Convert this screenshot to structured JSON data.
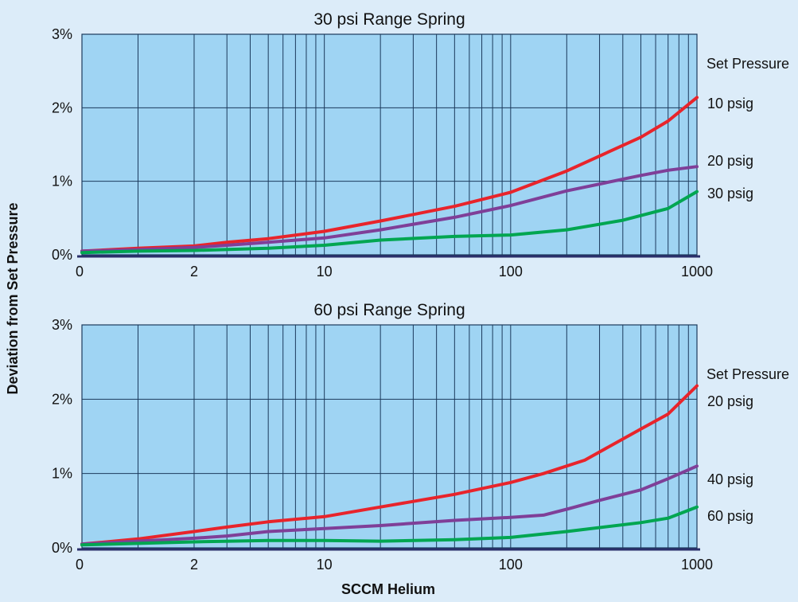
{
  "chart_data": [
    {
      "type": "line",
      "title": "30 psi Range Spring",
      "xlabel": "SCCM Helium",
      "ylabel": "Deviation from Set Pressure",
      "xscale": "log",
      "xlim": [
        0.5,
        1000
      ],
      "ylim": [
        0,
        3
      ],
      "x_ticks": [
        {
          "value": 0.5,
          "label": "0"
        },
        {
          "value": 2,
          "label": "2"
        },
        {
          "value": 10,
          "label": "10"
        },
        {
          "value": 100,
          "label": "100"
        },
        {
          "value": 1000,
          "label": "1000"
        }
      ],
      "y_ticks": [
        {
          "value": 0,
          "label": "0%"
        },
        {
          "value": 1,
          "label": "1%"
        },
        {
          "value": 2,
          "label": "2%"
        },
        {
          "value": 3,
          "label": "3%"
        }
      ],
      "grid": true,
      "legend_title": "Set Pressure",
      "legend_position": "right",
      "series": [
        {
          "name": "10 psig",
          "color": "#e8242b",
          "x": [
            0.5,
            1,
            2,
            3,
            5,
            10,
            20,
            50,
            100,
            200,
            500,
            700,
            1000
          ],
          "y": [
            0.05,
            0.09,
            0.12,
            0.17,
            0.22,
            0.32,
            0.46,
            0.66,
            0.85,
            1.14,
            1.6,
            1.82,
            2.14
          ]
        },
        {
          "name": "20 psig",
          "color": "#7f3f98",
          "x": [
            0.5,
            1,
            2,
            3,
            5,
            10,
            20,
            50,
            100,
            200,
            500,
            700,
            1000
          ],
          "y": [
            0.05,
            0.07,
            0.1,
            0.13,
            0.17,
            0.23,
            0.34,
            0.51,
            0.67,
            0.87,
            1.08,
            1.15,
            1.2
          ]
        },
        {
          "name": "30 psig",
          "color": "#00a651",
          "x": [
            0.5,
            1,
            2,
            5,
            10,
            20,
            50,
            100,
            200,
            400,
            700,
            1000
          ],
          "y": [
            0.03,
            0.05,
            0.06,
            0.09,
            0.13,
            0.2,
            0.25,
            0.27,
            0.34,
            0.47,
            0.63,
            0.86
          ]
        }
      ]
    },
    {
      "type": "line",
      "title": "60 psi Range Spring",
      "xlabel": "SCCM Helium",
      "ylabel": "Deviation from Set Pressure",
      "xscale": "log",
      "xlim": [
        0.5,
        1000
      ],
      "ylim": [
        0,
        3
      ],
      "x_ticks": [
        {
          "value": 0.5,
          "label": "0"
        },
        {
          "value": 2,
          "label": "2"
        },
        {
          "value": 10,
          "label": "10"
        },
        {
          "value": 100,
          "label": "100"
        },
        {
          "value": 1000,
          "label": "1000"
        }
      ],
      "y_ticks": [
        {
          "value": 0,
          "label": "0%"
        },
        {
          "value": 1,
          "label": "1%"
        },
        {
          "value": 2,
          "label": "2%"
        },
        {
          "value": 3,
          "label": "3%"
        }
      ],
      "grid": true,
      "legend_title": "Set Pressure",
      "legend_position": "right",
      "series": [
        {
          "name": "20 psig",
          "color": "#e8242b",
          "x": [
            0.5,
            1,
            2,
            3,
            5,
            10,
            20,
            50,
            100,
            150,
            250,
            500,
            700,
            1000
          ],
          "y": [
            0.05,
            0.12,
            0.22,
            0.28,
            0.35,
            0.42,
            0.55,
            0.72,
            0.88,
            1.0,
            1.18,
            1.6,
            1.8,
            2.18
          ]
        },
        {
          "name": "40 psig",
          "color": "#7f3f98",
          "x": [
            0.5,
            1,
            2,
            3,
            5,
            10,
            20,
            50,
            100,
            150,
            200,
            300,
            500,
            700,
            1000
          ],
          "y": [
            0.05,
            0.09,
            0.13,
            0.16,
            0.22,
            0.26,
            0.3,
            0.37,
            0.41,
            0.44,
            0.52,
            0.64,
            0.78,
            0.93,
            1.1
          ]
        },
        {
          "name": "60 psig",
          "color": "#00a651",
          "x": [
            0.5,
            1,
            2,
            5,
            10,
            20,
            50,
            100,
            200,
            500,
            700,
            1000
          ],
          "y": [
            0.04,
            0.06,
            0.08,
            0.1,
            0.1,
            0.09,
            0.11,
            0.14,
            0.22,
            0.34,
            0.4,
            0.55
          ]
        }
      ]
    }
  ]
}
